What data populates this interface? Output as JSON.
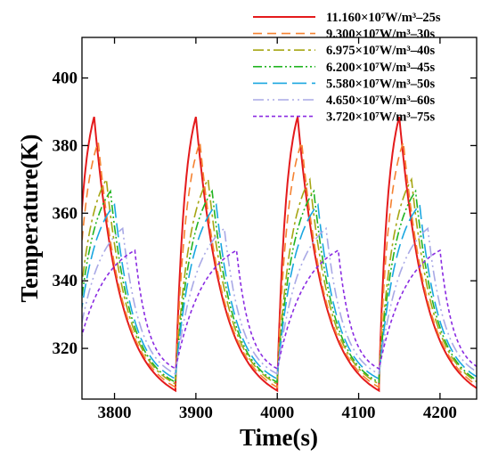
{
  "chart_data": {
    "type": "line",
    "title": "",
    "xlabel": "Time(s)",
    "ylabel": "Temperature(K)",
    "xlim": [
      3760,
      4245
    ],
    "ylim": [
      305,
      412
    ],
    "xticks": [
      3800,
      3900,
      4000,
      4100,
      4200
    ],
    "yticks": [
      320,
      340,
      360,
      380,
      400
    ],
    "grid": false,
    "legend_position": "top-right",
    "cycle_period": 125,
    "cycle_starts": [
      3750,
      3875,
      4000,
      4125
    ],
    "series": [
      {
        "name": "11.160×10⁷W/m³–25s",
        "heating_time": 25,
        "color": "#e41a1c",
        "dash": "",
        "start_temp": 309,
        "peak_temp": 388.5,
        "end_temp": 307.5
      },
      {
        "name": "9.300×10⁷W/m³–30s",
        "heating_time": 30,
        "color": "#f58231",
        "dash": "10,6",
        "start_temp": 310,
        "peak_temp": 381,
        "end_temp": 308.5
      },
      {
        "name": "6.975×10⁷W/m³–40s",
        "heating_time": 40,
        "color": "#a6a614",
        "dash": "12,4,3,4",
        "start_temp": 311,
        "peak_temp": 370,
        "end_temp": 309.5
      },
      {
        "name": "6.200×10⁷W/m³–45s",
        "heating_time": 45,
        "color": "#22b422",
        "dash": "10,3,2,3,2,3",
        "start_temp": 311.5,
        "peak_temp": 366.5,
        "end_temp": 310
      },
      {
        "name": "5.580×10⁷W/m³–50s",
        "heating_time": 50,
        "color": "#1aa7e0",
        "dash": "16,6",
        "start_temp": 312,
        "peak_temp": 362.5,
        "end_temp": 311
      },
      {
        "name": "4.650×10⁷W/m³–60s",
        "heating_time": 60,
        "color": "#a9a9e6",
        "dash": "12,4,2,4,2,4",
        "start_temp": 313,
        "peak_temp": 355.5,
        "end_temp": 312.5
      },
      {
        "name": "3.720×10⁷W/m³–75s",
        "heating_time": 75,
        "color": "#8a2be2",
        "dash": "4,3",
        "start_temp": 314,
        "peak_temp": 349,
        "end_temp": 314
      }
    ]
  }
}
